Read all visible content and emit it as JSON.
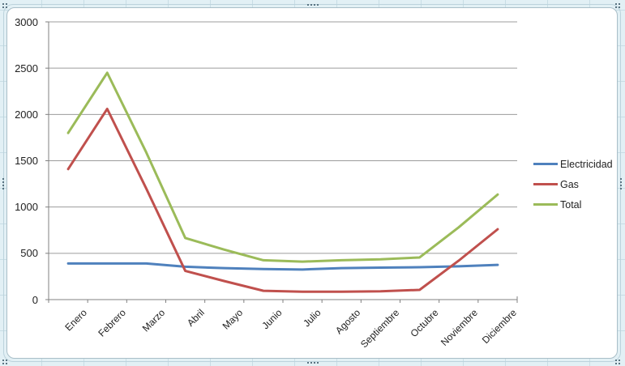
{
  "app": {
    "surface": "excel-worksheet",
    "selected_object": "chart"
  },
  "chart_data": {
    "type": "line",
    "title": "",
    "xlabel": "",
    "ylabel": "",
    "categories": [
      "Enero",
      "Febrero",
      "Marzo",
      "Abril",
      "Mayo",
      "Junio",
      "Julio",
      "Agosto",
      "Septiembre",
      "Octubre",
      "Noviembre",
      "Diciembre"
    ],
    "series": [
      {
        "name": "Electricidad",
        "color": "#4F81BD",
        "values": [
          390,
          390,
          390,
          355,
          340,
          330,
          325,
          340,
          345,
          350,
          360,
          375
        ]
      },
      {
        "name": "Gas",
        "color": "#C0504D",
        "values": [
          1410,
          2060,
          1200,
          310,
          200,
          95,
          85,
          85,
          90,
          105,
          420,
          760
        ]
      },
      {
        "name": "Total",
        "color": "#9BBB59",
        "values": [
          1800,
          2450,
          1590,
          665,
          540,
          425,
          410,
          425,
          435,
          455,
          780,
          1135
        ]
      }
    ],
    "ylim": [
      0,
      3000
    ],
    "ytick_step": 500,
    "yticks": [
      "0",
      "500",
      "1000",
      "1500",
      "2000",
      "2500",
      "3000"
    ],
    "grid": true,
    "legend_position": "right",
    "colors": {
      "gridline": "#9c9c9c",
      "axis": "#808080",
      "chart_background": "#ffffff",
      "sheet_background": "#e2f0f5"
    }
  }
}
